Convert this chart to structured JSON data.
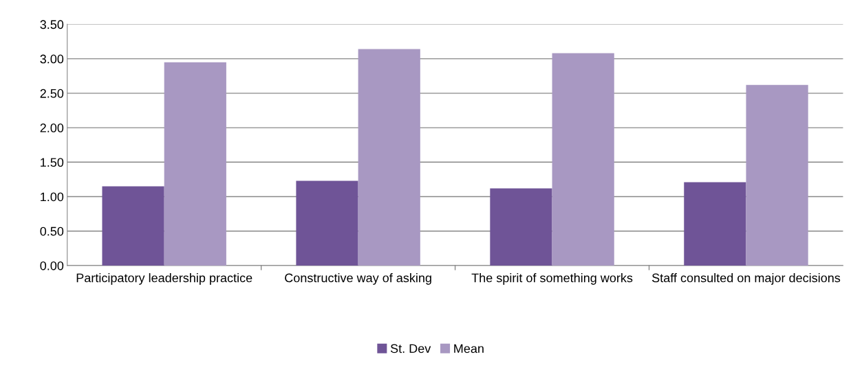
{
  "chart_data": {
    "type": "bar",
    "categories": [
      "Participatory leadership practice",
      "Constructive way of asking",
      "The spirit of something works",
      "Staff consulted on major decisions"
    ],
    "series": [
      {
        "name": "St. Dev",
        "color": "#6f5497",
        "values": [
          1.15,
          1.23,
          1.12,
          1.21
        ]
      },
      {
        "name": "Mean",
        "color": "#a898c2",
        "values": [
          2.95,
          3.14,
          3.08,
          2.62
        ]
      }
    ],
    "ylim": [
      0,
      3.5
    ],
    "yticks": [
      {
        "value": 0,
        "label": "0.00"
      },
      {
        "value": 0.5,
        "label": "0.50"
      },
      {
        "value": 1,
        "label": "1.00"
      },
      {
        "value": 1.5,
        "label": "1.50"
      },
      {
        "value": 2,
        "label": "2.00"
      },
      {
        "value": 2.5,
        "label": "2.50"
      },
      {
        "value": 3,
        "label": "3.00"
      },
      {
        "value": 3.5,
        "label": "3.50"
      }
    ],
    "grid": "y",
    "legend": "bottom"
  }
}
